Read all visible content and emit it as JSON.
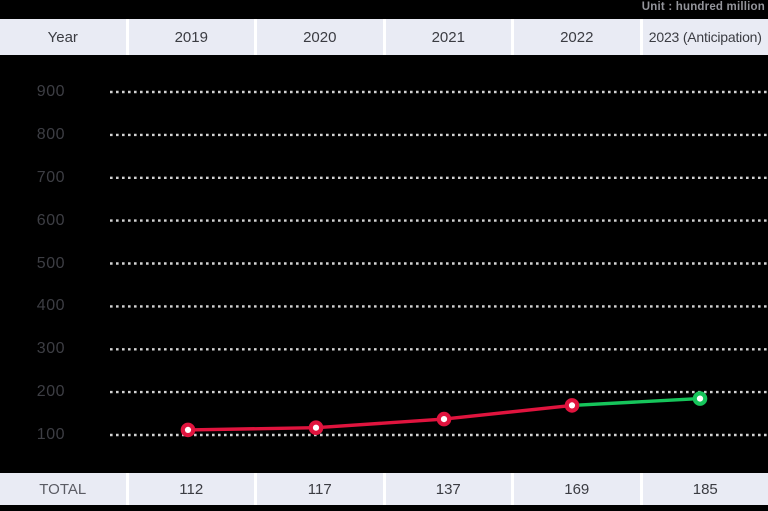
{
  "unit_label": "Unit : hundred million",
  "header": {
    "year_label": "Year",
    "columns": [
      "2019",
      "2020",
      "2021",
      "2022",
      "2023 (Anticipation)"
    ]
  },
  "total_row": {
    "label": "TOTAL",
    "values": [
      "112",
      "117",
      "137",
      "169",
      "185"
    ]
  },
  "colors": {
    "background": "#000000",
    "row_bg": "#e9ebf4",
    "divider": "#ffffff",
    "grid_dot": "#d2d2d2",
    "axis_label": "#3d3e44",
    "actual_red": "#e0143e",
    "anticipation_green": "#16c55b",
    "marker_center": "#ffffff"
  },
  "chart_data": {
    "type": "line",
    "title": "",
    "categories": [
      "2019",
      "2020",
      "2021",
      "2022",
      "2023 (Anticipation)"
    ],
    "values": [
      112,
      117,
      137,
      169,
      185
    ],
    "anticipation_start_index": 3,
    "actual_color": "#e0143e",
    "anticipation_color": "#16c55b",
    "yticks": [
      100,
      200,
      300,
      400,
      500,
      600,
      700,
      800,
      900
    ],
    "ylim": [
      100,
      900
    ],
    "unit": "hundred million",
    "grid": "dotted horizontal",
    "legend": "none"
  }
}
